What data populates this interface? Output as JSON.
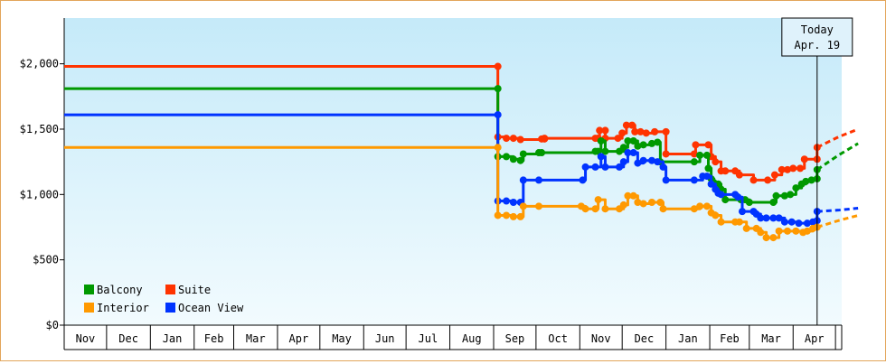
{
  "chart_data": {
    "type": "line",
    "title": "",
    "xlabel": "",
    "ylabel": "",
    "ylim": [
      0,
      2350
    ],
    "yticks": [
      {
        "value": 0,
        "label": "$0"
      },
      {
        "value": 500,
        "label": "$500"
      },
      {
        "value": 1000,
        "label": "$1,000"
      },
      {
        "value": 1500,
        "label": "$1,500"
      },
      {
        "value": 2000,
        "label": "$2,000"
      }
    ],
    "x_axis_months": [
      "Nov",
      "Dec",
      "Jan",
      "Feb",
      "Mar",
      "Apr",
      "May",
      "Jun",
      "Jul",
      "Aug",
      "Sep",
      "Oct",
      "Nov",
      "Dec",
      "Jan",
      "Feb",
      "Mar",
      "Apr"
    ],
    "x_axis_note": "x values are day indices counted from the start of the first Nov on the axis",
    "grid": false,
    "legend_position": "bottom-left",
    "today_marker": {
      "line1": "Today",
      "line2": "Apr. 19",
      "x": 533
    },
    "series": [
      {
        "name": "Suite",
        "color": "#ff3300",
        "points": [
          [
            0,
            1980
          ],
          [
            307,
            1980
          ],
          [
            307,
            1440
          ],
          [
            313,
            1430
          ],
          [
            318,
            1430
          ],
          [
            323,
            1420
          ],
          [
            340,
            1425
          ],
          [
            338,
            1425
          ],
          [
            340,
            1430
          ],
          [
            378,
            1430
          ],
          [
            376,
            1430
          ],
          [
            378,
            1430
          ],
          [
            379,
            1490
          ],
          [
            383,
            1490
          ],
          [
            383,
            1430
          ],
          [
            392,
            1430
          ],
          [
            395,
            1470
          ],
          [
            398,
            1530
          ],
          [
            402,
            1530
          ],
          [
            404,
            1480
          ],
          [
            408,
            1480
          ],
          [
            412,
            1470
          ],
          [
            418,
            1480
          ],
          [
            426,
            1480
          ],
          [
            426,
            1310
          ],
          [
            446,
            1310
          ],
          [
            447,
            1380
          ],
          [
            456,
            1380
          ],
          [
            458,
            1290
          ],
          [
            461,
            1250
          ],
          [
            465,
            1180
          ],
          [
            468,
            1180
          ],
          [
            475,
            1180
          ],
          [
            478,
            1150
          ],
          [
            488,
            1110
          ],
          [
            498,
            1110
          ],
          [
            503,
            1150
          ],
          [
            508,
            1190
          ],
          [
            512,
            1190
          ],
          [
            516,
            1200
          ],
          [
            521,
            1200
          ],
          [
            524,
            1270
          ],
          [
            533,
            1270
          ],
          [
            533,
            1360
          ]
        ],
        "forecast": [
          [
            533,
            1360
          ],
          [
            548,
            1440
          ],
          [
            562,
            1500
          ]
        ]
      },
      {
        "name": "Balcony",
        "color": "#009900",
        "points": [
          [
            0,
            1810
          ],
          [
            307,
            1810
          ],
          [
            307,
            1290
          ],
          [
            313,
            1290
          ],
          [
            318,
            1270
          ],
          [
            323,
            1260
          ],
          [
            325,
            1310
          ],
          [
            336,
            1320
          ],
          [
            338,
            1320
          ],
          [
            376,
            1330
          ],
          [
            378,
            1330
          ],
          [
            380,
            1410
          ],
          [
            383,
            1330
          ],
          [
            393,
            1330
          ],
          [
            396,
            1360
          ],
          [
            399,
            1410
          ],
          [
            403,
            1410
          ],
          [
            406,
            1370
          ],
          [
            410,
            1380
          ],
          [
            416,
            1390
          ],
          [
            420,
            1400
          ],
          [
            422,
            1250
          ],
          [
            446,
            1250
          ],
          [
            450,
            1300
          ],
          [
            455,
            1300
          ],
          [
            456,
            1200
          ],
          [
            458,
            1120
          ],
          [
            460,
            1090
          ],
          [
            463,
            1080
          ],
          [
            465,
            1040
          ],
          [
            468,
            960
          ],
          [
            479,
            960
          ],
          [
            482,
            960
          ],
          [
            485,
            940
          ],
          [
            502,
            940
          ],
          [
            504,
            990
          ],
          [
            510,
            990
          ],
          [
            514,
            1000
          ],
          [
            518,
            1050
          ],
          [
            522,
            1080
          ],
          [
            525,
            1100
          ],
          [
            529,
            1110
          ],
          [
            533,
            1120
          ],
          [
            533,
            1190
          ]
        ],
        "forecast": [
          [
            533,
            1190
          ],
          [
            548,
            1300
          ],
          [
            562,
            1390
          ]
        ]
      },
      {
        "name": "Ocean View",
        "color": "#0033ff",
        "points": [
          [
            0,
            1610
          ],
          [
            307,
            1610
          ],
          [
            307,
            950
          ],
          [
            313,
            950
          ],
          [
            318,
            940
          ],
          [
            323,
            940
          ],
          [
            325,
            1110
          ],
          [
            336,
            1110
          ],
          [
            367,
            1110
          ],
          [
            369,
            1210
          ],
          [
            376,
            1210
          ],
          [
            380,
            1290
          ],
          [
            383,
            1210
          ],
          [
            393,
            1210
          ],
          [
            396,
            1250
          ],
          [
            399,
            1320
          ],
          [
            403,
            1320
          ],
          [
            406,
            1240
          ],
          [
            410,
            1260
          ],
          [
            416,
            1260
          ],
          [
            420,
            1250
          ],
          [
            424,
            1210
          ],
          [
            426,
            1110
          ],
          [
            446,
            1110
          ],
          [
            452,
            1140
          ],
          [
            455,
            1140
          ],
          [
            458,
            1080
          ],
          [
            461,
            1040
          ],
          [
            463,
            1010
          ],
          [
            465,
            1000
          ],
          [
            475,
            1000
          ],
          [
            477,
            980
          ],
          [
            480,
            870
          ],
          [
            488,
            870
          ],
          [
            490,
            850
          ],
          [
            493,
            820
          ],
          [
            497,
            820
          ],
          [
            502,
            820
          ],
          [
            506,
            820
          ],
          [
            510,
            790
          ],
          [
            515,
            790
          ],
          [
            520,
            780
          ],
          [
            526,
            780
          ],
          [
            530,
            790
          ],
          [
            533,
            800
          ],
          [
            533,
            870
          ]
        ],
        "forecast": [
          [
            533,
            870
          ],
          [
            548,
            880
          ],
          [
            562,
            895
          ]
        ]
      },
      {
        "name": "Interior",
        "color": "#ff9900",
        "points": [
          [
            0,
            1360
          ],
          [
            307,
            1360
          ],
          [
            307,
            840
          ],
          [
            313,
            840
          ],
          [
            318,
            830
          ],
          [
            323,
            830
          ],
          [
            325,
            910
          ],
          [
            336,
            910
          ],
          [
            366,
            910
          ],
          [
            369,
            890
          ],
          [
            376,
            890
          ],
          [
            378,
            960
          ],
          [
            383,
            890
          ],
          [
            393,
            890
          ],
          [
            396,
            920
          ],
          [
            399,
            990
          ],
          [
            403,
            990
          ],
          [
            406,
            940
          ],
          [
            410,
            930
          ],
          [
            416,
            940
          ],
          [
            422,
            940
          ],
          [
            424,
            890
          ],
          [
            446,
            890
          ],
          [
            450,
            910
          ],
          [
            455,
            910
          ],
          [
            458,
            860
          ],
          [
            461,
            840
          ],
          [
            465,
            790
          ],
          [
            475,
            790
          ],
          [
            478,
            790
          ],
          [
            483,
            740
          ],
          [
            490,
            740
          ],
          [
            493,
            710
          ],
          [
            497,
            670
          ],
          [
            502,
            670
          ],
          [
            506,
            720
          ],
          [
            512,
            720
          ],
          [
            518,
            720
          ],
          [
            523,
            710
          ],
          [
            526,
            720
          ],
          [
            530,
            740
          ],
          [
            533,
            750
          ]
        ],
        "forecast": [
          [
            533,
            750
          ],
          [
            548,
            800
          ],
          [
            562,
            840
          ]
        ]
      }
    ]
  }
}
